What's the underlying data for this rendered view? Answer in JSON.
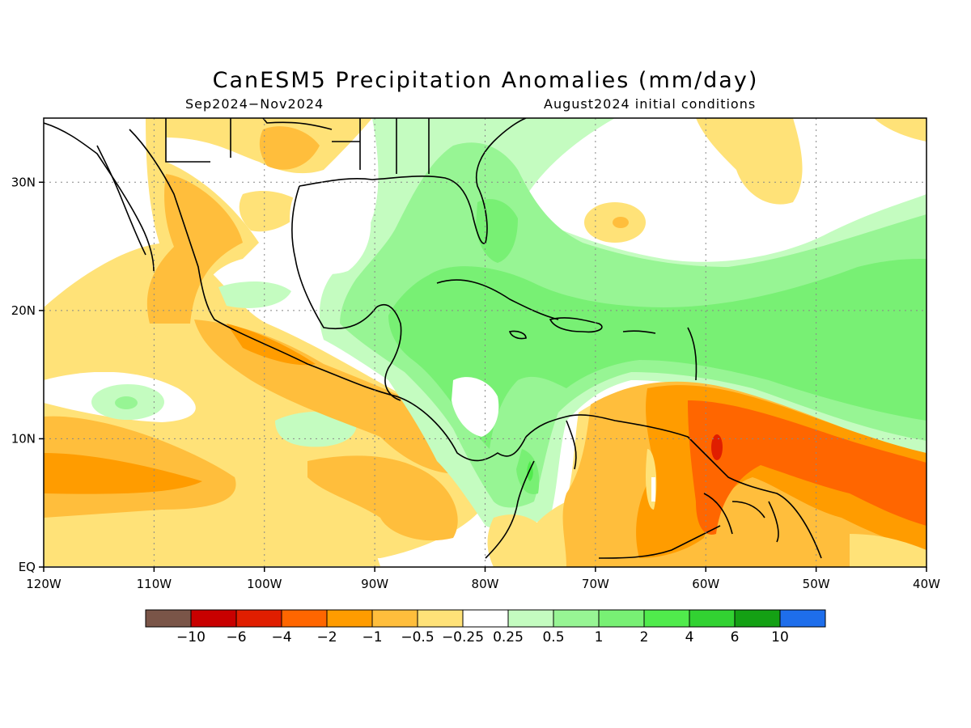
{
  "title": "CanESM5 Precipitation Anomalies (mm/day)",
  "subtitle_left": "Sep2024−Nov2024",
  "subtitle_right": "August2024 initial conditions",
  "map": {
    "lon_range": [
      -120,
      -40
    ],
    "lat_range": [
      0,
      35
    ],
    "x_ticks": [
      {
        "lon": -120,
        "label": "120W"
      },
      {
        "lon": -110,
        "label": "110W"
      },
      {
        "lon": -100,
        "label": "100W"
      },
      {
        "lon": -90,
        "label": "90W"
      },
      {
        "lon": -80,
        "label": "80W"
      },
      {
        "lon": -70,
        "label": "70W"
      },
      {
        "lon": -60,
        "label": "60W"
      },
      {
        "lon": -50,
        "label": "50W"
      },
      {
        "lon": -40,
        "label": "40W"
      }
    ],
    "y_ticks": [
      {
        "lat": 0,
        "label": "EQ"
      },
      {
        "lat": 10,
        "label": "10N"
      },
      {
        "lat": 20,
        "label": "20N"
      },
      {
        "lat": 30,
        "label": "30N"
      }
    ],
    "grid": "dotted"
  },
  "colorbar": {
    "colors": [
      "#7a5548",
      "#c80000",
      "#e01e00",
      "#ff6600",
      "#ff9c00",
      "#ffbe3c",
      "#ffe278",
      "#ffffff",
      "#c4fcc0",
      "#97f594",
      "#78f074",
      "#50eb4c",
      "#32d232",
      "#14a014",
      "#1e6eeb"
    ],
    "labels": [
      "−10",
      "−6",
      "−4",
      "−2",
      "−1",
      "−0.5",
      "−0.25",
      "0.25",
      "0.5",
      "1",
      "2",
      "4",
      "6",
      "10"
    ]
  }
}
